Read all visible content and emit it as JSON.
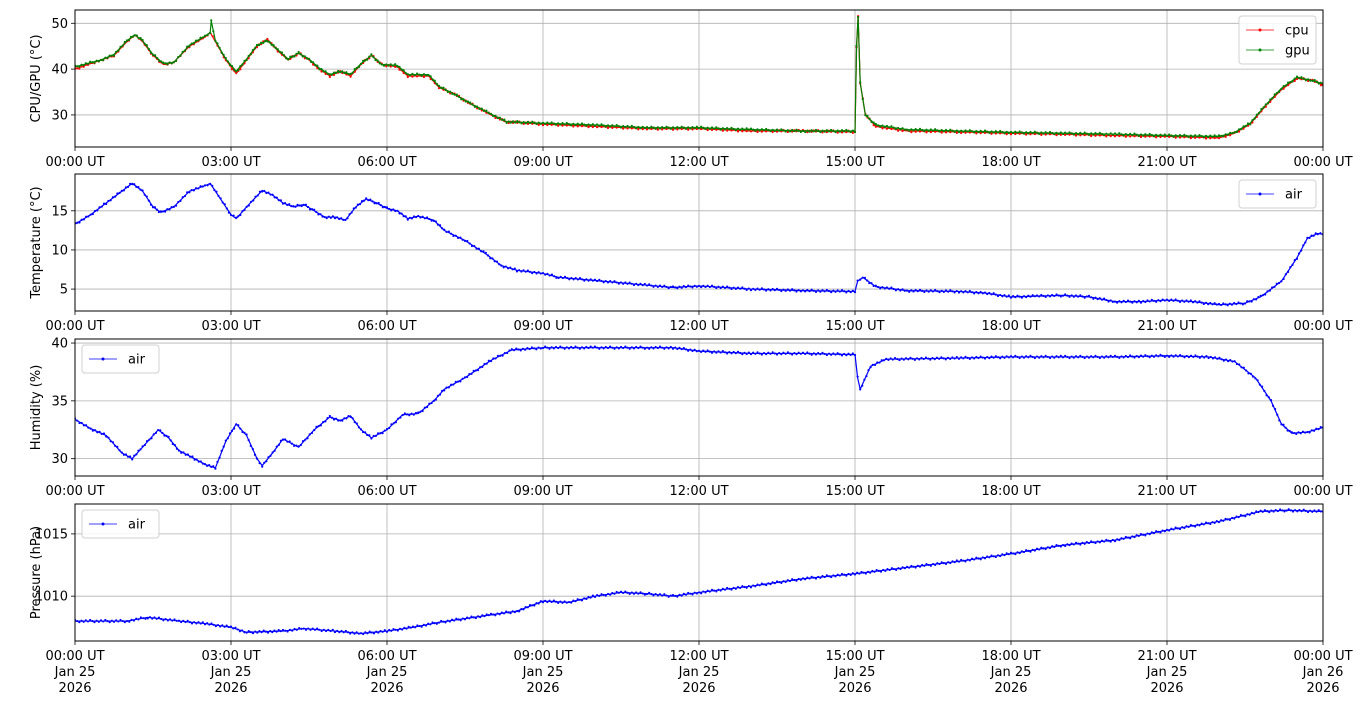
{
  "chart_data": [
    {
      "type": "line",
      "ylabel": "CPU/GPU (°C)",
      "ylim": [
        23,
        52.9
      ],
      "yticks": [
        30,
        40,
        50
      ],
      "xlim_hours": [
        0,
        24
      ],
      "xtick_labels": [
        "00:00 UT",
        "03:00 UT",
        "06:00 UT",
        "09:00 UT",
        "12:00 UT",
        "15:00 UT",
        "18:00 UT",
        "21:00 UT",
        "00:00 UT"
      ],
      "grid": true,
      "legend": "top-right",
      "series": [
        {
          "name": "cpu",
          "color": "#ff0000",
          "x": [
            0,
            0.5,
            0.75,
            1.0,
            1.15,
            1.3,
            1.5,
            1.7,
            1.9,
            2.2,
            2.5,
            2.6,
            2.7,
            2.9,
            3.1,
            3.3,
            3.5,
            3.7,
            3.9,
            4.1,
            4.3,
            4.5,
            4.7,
            4.9,
            5.1,
            5.3,
            5.5,
            5.7,
            5.9,
            6.2,
            6.4,
            6.8,
            7.0,
            7.3,
            7.6,
            8.0,
            8.3,
            9,
            10,
            11,
            12,
            13,
            14,
            15,
            15.03,
            15.06,
            15.1,
            15.2,
            15.4,
            16,
            17,
            18,
            19,
            20,
            21,
            22,
            22.3,
            22.6,
            22.9,
            23.2,
            23.5,
            23.8,
            24
          ],
          "y": [
            40,
            42,
            43,
            46,
            47.5,
            46,
            43,
            41,
            41.5,
            45,
            47,
            48,
            46,
            42,
            39,
            42,
            45,
            46.5,
            44,
            42,
            43.5,
            42,
            40,
            38.5,
            39.5,
            38.5,
            41,
            43,
            41,
            40.5,
            38.5,
            38.5,
            36,
            34.5,
            32.5,
            30,
            28.5,
            28,
            27.5,
            27,
            27,
            26.5,
            26.5,
            26.3,
            45,
            51.5,
            37,
            30,
            27.5,
            26.5,
            26.3,
            26,
            25.8,
            25.5,
            25.3,
            25,
            26,
            28,
            32,
            35.5,
            38,
            37.5,
            36.5
          ]
        },
        {
          "name": "gpu",
          "color": "#008000",
          "x": [
            0,
            0.5,
            0.75,
            1.0,
            1.15,
            1.3,
            1.5,
            1.7,
            1.9,
            2.2,
            2.5,
            2.6,
            2.62,
            2.7,
            2.9,
            3.1,
            3.3,
            3.5,
            3.7,
            3.9,
            4.1,
            4.3,
            4.5,
            4.7,
            4.9,
            5.1,
            5.3,
            5.5,
            5.7,
            5.9,
            6.2,
            6.4,
            6.8,
            7.0,
            7.3,
            7.6,
            8.0,
            8.3,
            9,
            10,
            11,
            12,
            13,
            14,
            15,
            15.03,
            15.06,
            15.1,
            15.2,
            15.4,
            16,
            17,
            18,
            19,
            20,
            21,
            22,
            22.3,
            22.6,
            22.9,
            23.2,
            23.5,
            23.8,
            24
          ],
          "y": [
            40.5,
            42,
            43.2,
            46.2,
            47.5,
            46.2,
            43.2,
            41.2,
            41.5,
            45.2,
            47.2,
            48,
            50.5,
            46.2,
            42.2,
            39.5,
            42.2,
            45.2,
            46.2,
            44.2,
            42.2,
            43.5,
            42.2,
            40.2,
            38.8,
            39.5,
            38.8,
            41.2,
            43,
            41,
            40.8,
            38.8,
            38.8,
            36.2,
            34.5,
            32.5,
            30.2,
            28.5,
            28.2,
            27.8,
            27.2,
            27.2,
            26.8,
            26.5,
            26.5,
            45,
            51.5,
            37,
            30,
            27.8,
            26.8,
            26.5,
            26.2,
            26,
            25.8,
            25.5,
            25.3,
            26.2,
            28.2,
            32.2,
            35.8,
            38.2,
            37.5,
            36.8
          ]
        }
      ]
    },
    {
      "type": "line",
      "ylabel": "Temperature (°C)",
      "ylim": [
        2.2,
        19.7
      ],
      "yticks": [
        5,
        10,
        15
      ],
      "xlim_hours": [
        0,
        24
      ],
      "xtick_labels": [
        "00:00 UT",
        "03:00 UT",
        "06:00 UT",
        "09:00 UT",
        "12:00 UT",
        "15:00 UT",
        "18:00 UT",
        "21:00 UT",
        "00:00 UT"
      ],
      "grid": true,
      "legend": "top-right",
      "series": [
        {
          "name": "air",
          "color": "#0000ff",
          "x": [
            0,
            0.3,
            0.6,
            0.9,
            1.1,
            1.3,
            1.5,
            1.65,
            1.9,
            2.2,
            2.5,
            2.6,
            2.8,
            3.0,
            3.1,
            3.3,
            3.6,
            3.8,
            4.0,
            4.2,
            4.4,
            4.6,
            4.8,
            5.0,
            5.2,
            5.4,
            5.6,
            5.8,
            6.0,
            6.2,
            6.4,
            6.6,
            6.9,
            7.1,
            7.5,
            7.9,
            8.2,
            8.5,
            9.0,
            9.3,
            10,
            11,
            11.5,
            12,
            13,
            14,
            15,
            15.05,
            15.15,
            15.4,
            16,
            17,
            17.5,
            18,
            18.5,
            19,
            19.5,
            20,
            20.5,
            21,
            21.5,
            22,
            22.5,
            22.8,
            23.2,
            23.5,
            23.7,
            23.9,
            24
          ],
          "y": [
            13.3,
            14.5,
            16,
            17.5,
            18.5,
            17.5,
            15.5,
            14.8,
            15.5,
            17.5,
            18.2,
            18.5,
            16.5,
            14.5,
            14.0,
            15.5,
            17.6,
            17.0,
            16,
            15.5,
            15.8,
            15,
            14.2,
            14.2,
            13.8,
            15.5,
            16.5,
            16,
            15.3,
            15.0,
            14.0,
            14.3,
            13.8,
            12.5,
            11.2,
            9.5,
            8.0,
            7.4,
            7,
            6.5,
            6.1,
            5.5,
            5.2,
            5.4,
            5.0,
            4.8,
            4.7,
            6.0,
            6.5,
            5.3,
            4.8,
            4.7,
            4.5,
            4.0,
            4.1,
            4.2,
            4.0,
            3.4,
            3.4,
            3.6,
            3.4,
            3.0,
            3.2,
            4.0,
            6,
            9,
            11.5,
            12.1,
            12.0
          ]
        }
      ]
    },
    {
      "type": "line",
      "ylabel": "Humidity (%)",
      "ylim": [
        28.5,
        40.35
      ],
      "yticks": [
        30,
        35,
        40
      ],
      "xlim_hours": [
        0,
        24
      ],
      "xtick_labels": [
        "00:00 UT",
        "03:00 UT",
        "06:00 UT",
        "09:00 UT",
        "12:00 UT",
        "15:00 UT",
        "18:00 UT",
        "21:00 UT",
        "00:00 UT"
      ],
      "grid": true,
      "legend": "top-left",
      "series": [
        {
          "name": "air",
          "color": "#0000ff",
          "x": [
            0,
            0.3,
            0.6,
            0.9,
            1.1,
            1.3,
            1.6,
            1.8,
            2.0,
            2.3,
            2.5,
            2.7,
            2.9,
            3.1,
            3.3,
            3.5,
            3.6,
            3.8,
            4.0,
            4.3,
            4.6,
            4.9,
            5.1,
            5.3,
            5.5,
            5.7,
            6.0,
            6.3,
            6.6,
            6.9,
            7.1,
            7.5,
            8.0,
            8.4,
            9.0,
            10,
            11,
            11.5,
            12,
            13,
            14,
            15,
            15.05,
            15.1,
            15.3,
            15.6,
            17,
            18,
            19,
            20,
            21,
            21.8,
            22.3,
            22.7,
            23.0,
            23.2,
            23.4,
            23.7,
            24
          ],
          "y": [
            33.4,
            32.6,
            32,
            30.5,
            30,
            31,
            32.5,
            31.8,
            30.7,
            30.0,
            29.5,
            29.2,
            31.5,
            33,
            32,
            30,
            29.4,
            30.5,
            31.7,
            31,
            32.5,
            33.6,
            33.3,
            33.7,
            32.5,
            31.8,
            32.5,
            33.8,
            33.9,
            35,
            36,
            37,
            38.5,
            39.4,
            39.6,
            39.6,
            39.6,
            39.6,
            39.3,
            39.1,
            39.1,
            39.0,
            37,
            36,
            38,
            38.6,
            38.7,
            38.8,
            38.8,
            38.8,
            38.9,
            38.8,
            38.4,
            37,
            35,
            33,
            32.2,
            32.3,
            32.7
          ]
        }
      ]
    },
    {
      "type": "line",
      "ylabel": "Pressure (hPa)",
      "ylim": [
        1006.4,
        1017.4
      ],
      "yticks": [
        1010,
        1015
      ],
      "xlim_hours": [
        0,
        24
      ],
      "xtick_labels": [
        "00:00 UT\nJan 25\n2026",
        "03:00 UT\nJan 25\n2026",
        "06:00 UT\nJan 25\n2026",
        "09:00 UT\nJan 25\n2026",
        "12:00 UT\nJan 25\n2026",
        "15:00 UT\nJan 25\n2026",
        "18:00 UT\nJan 25\n2026",
        "21:00 UT\nJan 25\n2026",
        "00:00 UT\nJan 26\n2026"
      ],
      "grid": true,
      "legend": "top-left",
      "series": [
        {
          "name": "air",
          "color": "#0000ff",
          "x": [
            0,
            1,
            1.4,
            2,
            2.5,
            3,
            3.3,
            4,
            4.4,
            5,
            5.5,
            6,
            6.5,
            7,
            8,
            8.5,
            9,
            9.5,
            10,
            10.5,
            11,
            11.5,
            12,
            13,
            14,
            15,
            16,
            17,
            18,
            19,
            20,
            21,
            22,
            22.8,
            23.3,
            24
          ],
          "y": [
            1008,
            1008,
            1008.3,
            1008,
            1007.8,
            1007.5,
            1007.1,
            1007.2,
            1007.4,
            1007.2,
            1007.0,
            1007.2,
            1007.5,
            1007.9,
            1008.5,
            1008.8,
            1009.6,
            1009.5,
            1010,
            1010.3,
            1010.2,
            1010.0,
            1010.3,
            1010.8,
            1011.4,
            1011.8,
            1012.3,
            1012.8,
            1013.4,
            1014.1,
            1014.5,
            1015.3,
            1016.0,
            1016.8,
            1016.9,
            1016.8
          ]
        }
      ]
    }
  ]
}
